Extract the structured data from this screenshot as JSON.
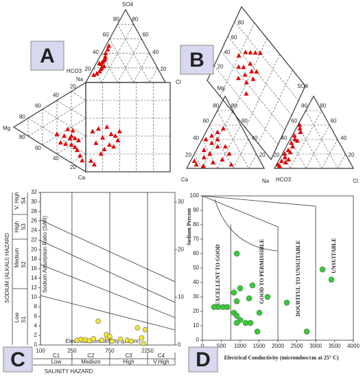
{
  "chart_data": [
    {
      "type": "durov",
      "panel": "A",
      "labels": {
        "so4": "SO4",
        "hco3": "HCO3",
        "na": "Na",
        "cl": "Cl",
        "mg": "Mg",
        "ca": "Ca"
      },
      "ticks": [
        20,
        40,
        60,
        80
      ],
      "color": "#e00000",
      "top_points": [
        [
          40,
          55
        ],
        [
          30,
          62
        ],
        [
          25,
          68
        ],
        [
          35,
          58
        ],
        [
          20,
          70
        ],
        [
          15,
          75
        ],
        [
          28,
          65
        ],
        [
          45,
          50
        ],
        [
          22,
          66
        ],
        [
          18,
          72
        ],
        [
          12,
          80
        ],
        [
          32,
          60
        ],
        [
          50,
          46
        ],
        [
          26,
          70
        ],
        [
          10,
          85
        ]
      ],
      "left_points": [
        [
          30,
          45
        ],
        [
          20,
          50
        ],
        [
          15,
          55
        ],
        [
          25,
          40
        ],
        [
          10,
          60
        ],
        [
          35,
          50
        ],
        [
          20,
          60
        ],
        [
          12,
          70
        ],
        [
          8,
          78
        ],
        [
          28,
          55
        ],
        [
          18,
          45
        ],
        [
          40,
          38
        ],
        [
          15,
          65
        ],
        [
          5,
          85
        ],
        [
          22,
          52
        ]
      ],
      "square_points": [
        [
          8,
          55
        ],
        [
          15,
          52
        ],
        [
          25,
          50
        ],
        [
          30,
          58
        ],
        [
          35,
          60
        ],
        [
          38,
          65
        ],
        [
          20,
          62
        ],
        [
          12,
          68
        ],
        [
          28,
          70
        ],
        [
          33,
          72
        ],
        [
          22,
          75
        ],
        [
          6,
          88
        ],
        [
          18,
          80
        ],
        [
          40,
          55
        ],
        [
          10,
          92
        ]
      ]
    },
    {
      "type": "piper",
      "panel": "B",
      "labels": {
        "mg": "Mg",
        "so4": "SO4",
        "ca": "Ca",
        "na": "Na",
        "hco3": "HCO3",
        "cl": "Cl"
      },
      "ticks": [
        20,
        40,
        60,
        80
      ],
      "color": "#e00000",
      "cation_points": [
        [
          50,
          15
        ],
        [
          45,
          10
        ],
        [
          40,
          20
        ],
        [
          35,
          15
        ],
        [
          30,
          25
        ],
        [
          25,
          10
        ],
        [
          20,
          20
        ],
        [
          15,
          15
        ],
        [
          10,
          5
        ],
        [
          5,
          10
        ],
        [
          8,
          30
        ],
        [
          12,
          40
        ],
        [
          5,
          55
        ],
        [
          55,
          20
        ],
        [
          30,
          35
        ],
        [
          20,
          45
        ],
        [
          3,
          20
        ],
        [
          40,
          5
        ]
      ],
      "anion_points": [
        [
          55,
          5
        ],
        [
          50,
          8
        ],
        [
          45,
          3
        ],
        [
          40,
          6
        ],
        [
          35,
          4
        ],
        [
          30,
          8
        ],
        [
          25,
          5
        ],
        [
          20,
          3
        ],
        [
          15,
          6
        ],
        [
          10,
          4
        ],
        [
          5,
          2
        ],
        [
          8,
          10
        ],
        [
          60,
          2
        ],
        [
          38,
          10
        ],
        [
          22,
          9
        ],
        [
          12,
          12
        ],
        [
          3,
          5
        ]
      ],
      "diamond_points": [
        [
          70,
          30
        ],
        [
          60,
          35
        ],
        [
          50,
          30
        ],
        [
          55,
          40
        ],
        [
          45,
          35
        ],
        [
          65,
          25
        ],
        [
          75,
          35
        ],
        [
          40,
          40
        ],
        [
          50,
          45
        ],
        [
          60,
          45
        ],
        [
          35,
          30
        ],
        [
          45,
          25
        ],
        [
          80,
          40
        ],
        [
          30,
          45
        ],
        [
          55,
          20
        ]
      ]
    },
    {
      "type": "scatter",
      "panel": "C",
      "xscale": "log",
      "xlim": [
        100,
        5000
      ],
      "xticks": [
        100,
        250,
        750,
        2250
      ],
      "ylim": [
        0,
        32
      ],
      "yticks": [
        0,
        2,
        4,
        6,
        8,
        10,
        12,
        14,
        16,
        18,
        20,
        22,
        24,
        26,
        28,
        30,
        32
      ],
      "y2lim": [
        0,
        32
      ],
      "y2ticks": [
        0,
        10,
        20,
        30
      ],
      "xlabel": "Electrical Conductivity (µS/cm)",
      "ylabel": "SODIUM (ALKALI) HAZARD",
      "ylabel_inner": "Sodium Adsorption Ratio (SAR)",
      "xlabel_bottom": "SALINITY HAZARD",
      "sodium_classes": [
        "Low",
        "Medium",
        "High",
        "V. High"
      ],
      "sodium_codes": [
        "S1",
        "S2",
        "S3",
        "S4"
      ],
      "salinity_classes": [
        "Low",
        "Medium",
        "High",
        "V.High"
      ],
      "salinity_codes": [
        "C1",
        "C2",
        "C3",
        "C4"
      ],
      "color": "#f2e33a",
      "x": [
        289,
        326,
        367,
        414,
        467,
        594,
        697,
        802,
        1021,
        1247,
        537,
        680,
        750,
        1680,
        2100,
        1900,
        2000,
        1400
      ],
      "values": [
        1,
        1.2,
        1.1,
        0.9,
        1.3,
        1,
        1.5,
        0.8,
        1.2,
        1,
        5,
        2.2,
        1.8,
        3.6,
        3.2,
        1.5,
        0.3,
        0.8
      ]
    },
    {
      "type": "scatter",
      "panel": "D",
      "xlim": [
        0,
        4000
      ],
      "xticks": [
        0,
        500,
        1000,
        1500,
        2000,
        2500,
        3000,
        3500,
        4000
      ],
      "ylim": [
        0,
        100
      ],
      "yticks": [
        0,
        10,
        20,
        30,
        40,
        50,
        60,
        70,
        80,
        90,
        100
      ],
      "xlabel": "Electrical Conductivity (micromhos/cm at 25° C)",
      "ylabel": "Sodium Percent",
      "regions": [
        "EXCELLENT TO GOOD",
        "GOOD TO PERMISSIBLE",
        "DOUBTFUL TO UNSUITABLE",
        "UNSUITABLE"
      ],
      "color": "#33cc33",
      "x": [
        909,
        418,
        545,
        655,
        309,
        836,
        909,
        836,
        909,
        1000,
        909,
        1145,
        1000,
        1236,
        1327,
        1509,
        1727,
        1455,
        1273,
        2236,
        2764,
        3182,
        3418
      ],
      "values": [
        60,
        23,
        23,
        23,
        23,
        33,
        27,
        19,
        17,
        14,
        12,
        12,
        36,
        29,
        38,
        19,
        30,
        6,
        12,
        26,
        6,
        49,
        42
      ]
    }
  ]
}
